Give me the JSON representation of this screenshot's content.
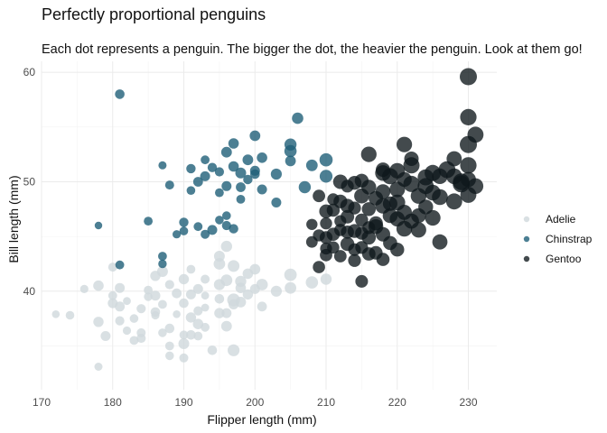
{
  "chart_data": {
    "type": "scatter",
    "title": "Perfectly proportional penguins",
    "subtitle": "Each dot represents a penguin. The bigger the dot, the heavier the penguin. Look at them go!",
    "xlabel": "Flipper length (mm)",
    "ylabel": "Bill length (mm)",
    "xlim": [
      170,
      234
    ],
    "ylim": [
      31,
      61
    ],
    "x_ticks": [
      "170",
      "180",
      "190",
      "200",
      "210",
      "220",
      "230"
    ],
    "y_ticks": [
      "40",
      "50",
      "60"
    ],
    "grid": true,
    "legend_position": "right",
    "size_encoding": "body mass",
    "series": [
      {
        "name": "Adelie",
        "color": "#cfd8dc",
        "opacity": 0.8,
        "points": [
          [
            172,
            37.9,
            3150
          ],
          [
            174,
            37.8,
            3400
          ],
          [
            176,
            40.2,
            3300
          ],
          [
            178,
            37.2,
            3900
          ],
          [
            178,
            40.5,
            3950
          ],
          [
            178,
            33.1,
            3250
          ],
          [
            179,
            35.9,
            3800
          ],
          [
            180,
            38.9,
            3800
          ],
          [
            180,
            42.2,
            3550
          ],
          [
            181,
            38.6,
            3800
          ],
          [
            181,
            40.3,
            3800
          ],
          [
            181,
            37.3,
            3600
          ],
          [
            182,
            39.1,
            3200
          ],
          [
            182,
            36.4,
            3300
          ],
          [
            183,
            37.5,
            3400
          ],
          [
            184,
            38.4,
            3600
          ],
          [
            184,
            35.7,
            3600
          ],
          [
            185,
            39.5,
            3400
          ],
          [
            185,
            40.1,
            3500
          ],
          [
            186,
            37.8,
            3300
          ],
          [
            186,
            38.1,
            3700
          ],
          [
            186,
            41.4,
            3900
          ],
          [
            187,
            36.2,
            3400
          ],
          [
            187,
            38.8,
            3450
          ],
          [
            188,
            35.0,
            3450
          ],
          [
            188,
            34.1,
            3400
          ],
          [
            188,
            40.6,
            3600
          ],
          [
            189,
            39.8,
            3750
          ],
          [
            189,
            37.9,
            3150
          ],
          [
            190,
            38.9,
            3700
          ],
          [
            190,
            35.2,
            4100
          ],
          [
            190,
            41.1,
            3900
          ],
          [
            190,
            36.0,
            3450
          ],
          [
            191,
            37.6,
            3900
          ],
          [
            191,
            39.7,
            3800
          ],
          [
            191,
            42.0,
            3500
          ],
          [
            192,
            38.2,
            3600
          ],
          [
            192,
            40.2,
            3800
          ],
          [
            192,
            37.0,
            4000
          ],
          [
            193,
            36.7,
            3450
          ],
          [
            193,
            39.6,
            3200
          ],
          [
            193,
            41.1,
            3550
          ],
          [
            194,
            34.6,
            3700
          ],
          [
            195,
            39.3,
            3700
          ],
          [
            195,
            38.0,
            3900
          ],
          [
            195,
            43.2,
            4100
          ],
          [
            195,
            40.6,
            4150
          ],
          [
            196,
            36.8,
            4050
          ],
          [
            196,
            41.0,
            4300
          ],
          [
            197,
            39.2,
            4700
          ],
          [
            197,
            42.3,
            4350
          ],
          [
            197,
            38.8,
            3850
          ],
          [
            198,
            40.9,
            4200
          ],
          [
            198,
            39.0,
            4050
          ],
          [
            199,
            39.7,
            3900
          ],
          [
            199,
            41.6,
            4000
          ],
          [
            200,
            40.2,
            3800
          ],
          [
            200,
            42.0,
            4050
          ],
          [
            201,
            40.6,
            4300
          ],
          [
            201,
            38.6,
            3750
          ],
          [
            203,
            40.0,
            4150
          ],
          [
            205,
            40.3,
            4300
          ],
          [
            205,
            41.5,
            4600
          ],
          [
            208,
            40.8,
            4550
          ],
          [
            210,
            41.1,
            4200
          ],
          [
            196,
            44.1,
            4200
          ],
          [
            197,
            34.6,
            4400
          ],
          [
            192,
            35.9,
            3500
          ],
          [
            190,
            33.9,
            3550
          ],
          [
            184,
            36.2,
            3550
          ],
          [
            186,
            39.6,
            3800
          ],
          [
            193,
            38.5,
            3200
          ],
          [
            191,
            36.0,
            3700
          ],
          [
            188,
            36.6,
            3700
          ],
          [
            195,
            42.5,
            4300
          ],
          [
            196,
            38.0,
            3800
          ],
          [
            198,
            40.3,
            3950
          ],
          [
            180,
            39.6,
            3500
          ],
          [
            183,
            35.5,
            3450
          ],
          [
            187,
            41.8,
            4100
          ]
        ]
      },
      {
        "name": "Chinstrap",
        "color": "#1f5f78",
        "opacity": 0.8,
        "points": [
          [
            178,
            46.0,
            3100
          ],
          [
            181,
            58.0,
            3700
          ],
          [
            181,
            42.4,
            3500
          ],
          [
            187,
            51.5,
            3250
          ],
          [
            187,
            42.5,
            3350
          ],
          [
            187,
            43.2,
            3450
          ],
          [
            190,
            46.3,
            3650
          ],
          [
            190,
            45.5,
            3400
          ],
          [
            191,
            49.2,
            3400
          ],
          [
            192,
            50.0,
            3750
          ],
          [
            193,
            52.0,
            3500
          ],
          [
            193,
            50.5,
            3800
          ],
          [
            193,
            45.2,
            3550
          ],
          [
            194,
            51.3,
            3650
          ],
          [
            194,
            45.6,
            3800
          ],
          [
            195,
            50.9,
            3600
          ],
          [
            195,
            49.0,
            3500
          ],
          [
            195,
            46.5,
            3400
          ],
          [
            196,
            52.7,
            4050
          ],
          [
            196,
            49.6,
            3800
          ],
          [
            196,
            46.0,
            3600
          ],
          [
            197,
            51.4,
            3950
          ],
          [
            197,
            53.5,
            4000
          ],
          [
            197,
            45.7,
            3650
          ],
          [
            198,
            50.8,
            4100
          ],
          [
            198,
            49.5,
            3750
          ],
          [
            199,
            52.0,
            4050
          ],
          [
            199,
            50.2,
            3650
          ],
          [
            200,
            54.2,
            4050
          ],
          [
            200,
            51.0,
            3800
          ],
          [
            201,
            49.3,
            3800
          ],
          [
            201,
            52.2,
            4000
          ],
          [
            203,
            50.7,
            4150
          ],
          [
            203,
            48.1,
            3800
          ],
          [
            205,
            53.4,
            4450
          ],
          [
            205,
            52.8,
            4550
          ],
          [
            205,
            51.9,
            4050
          ],
          [
            206,
            55.8,
            4250
          ],
          [
            208,
            51.5,
            4300
          ],
          [
            210,
            52.0,
            4800
          ],
          [
            210,
            50.5,
            4700
          ],
          [
            207,
            49.5,
            4450
          ],
          [
            198,
            48.4,
            3500
          ],
          [
            200,
            50.7,
            3700
          ],
          [
            192,
            45.9,
            3500
          ],
          [
            189,
            45.2,
            3300
          ],
          [
            196,
            46.9,
            3400
          ],
          [
            188,
            49.7,
            3550
          ],
          [
            185,
            46.4,
            3500
          ],
          [
            191,
            51.2,
            3650
          ]
        ]
      },
      {
        "name": "Gentoo",
        "color": "#0e171b",
        "opacity": 0.78,
        "points": [
          [
            208,
            46.1,
            4200
          ],
          [
            208,
            44.5,
            4300
          ],
          [
            209,
            45.1,
            4450
          ],
          [
            209,
            48.7,
            4600
          ],
          [
            210,
            46.2,
            4450
          ],
          [
            210,
            43.3,
            4600
          ],
          [
            210,
            47.3,
            4950
          ],
          [
            211,
            44.0,
            4500
          ],
          [
            211,
            48.4,
            4400
          ],
          [
            211,
            45.2,
            4800
          ],
          [
            212,
            43.2,
            4600
          ],
          [
            212,
            46.4,
            4400
          ],
          [
            212,
            48.2,
            4950
          ],
          [
            213,
            49.6,
            4700
          ],
          [
            213,
            44.3,
            5050
          ],
          [
            213,
            46.8,
            4900
          ],
          [
            214,
            45.5,
            5000
          ],
          [
            214,
            47.6,
            4700
          ],
          [
            214,
            42.8,
            4700
          ],
          [
            214,
            49.9,
            5050
          ],
          [
            215,
            40.9,
            4650
          ],
          [
            215,
            46.5,
            4750
          ],
          [
            215,
            48.7,
            5350
          ],
          [
            215,
            45.3,
            4800
          ],
          [
            215,
            50.1,
            5000
          ],
          [
            216,
            44.9,
            5100
          ],
          [
            216,
            47.5,
            5000
          ],
          [
            216,
            49.5,
            5300
          ],
          [
            216,
            45.8,
            4700
          ],
          [
            217,
            43.5,
            4900
          ],
          [
            217,
            46.2,
            5100
          ],
          [
            217,
            48.5,
            5200
          ],
          [
            218,
            49.1,
            5300
          ],
          [
            218,
            45.2,
            5200
          ],
          [
            218,
            47.8,
            5500
          ],
          [
            218,
            42.9,
            4800
          ],
          [
            219,
            46.9,
            5300
          ],
          [
            219,
            50.5,
            5700
          ],
          [
            219,
            44.4,
            5100
          ],
          [
            220,
            49.3,
            5550
          ],
          [
            220,
            46.6,
            5400
          ],
          [
            220,
            48.1,
            5650
          ],
          [
            220,
            43.8,
            5000
          ],
          [
            221,
            47.2,
            5400
          ],
          [
            221,
            50.2,
            5300
          ],
          [
            221,
            45.7,
            5600
          ],
          [
            222,
            49.8,
            5750
          ],
          [
            222,
            46.4,
            5400
          ],
          [
            222,
            52.1,
            5200
          ],
          [
            223,
            48.7,
            5600
          ],
          [
            223,
            45.6,
            5450
          ],
          [
            224,
            49.6,
            5700
          ],
          [
            224,
            50.4,
            5700
          ],
          [
            224,
            47.7,
            5300
          ],
          [
            225,
            50.8,
            5750
          ],
          [
            225,
            49.0,
            5600
          ],
          [
            225,
            46.7,
            5500
          ],
          [
            226,
            48.6,
            5650
          ],
          [
            226,
            50.5,
            5550
          ],
          [
            226,
            44.5,
            5400
          ],
          [
            227,
            51.1,
            5900
          ],
          [
            228,
            50.5,
            5600
          ],
          [
            228,
            48.2,
            5700
          ],
          [
            228,
            52.1,
            5400
          ],
          [
            229,
            49.8,
            5950
          ],
          [
            229,
            50.0,
            5850
          ],
          [
            230,
            59.6,
            6050
          ],
          [
            230,
            55.9,
            5800
          ],
          [
            230,
            51.5,
            5800
          ],
          [
            230,
            50.2,
            5400
          ],
          [
            230,
            48.8,
            5700
          ],
          [
            230,
            53.4,
            6000
          ],
          [
            231,
            54.3,
            5700
          ],
          [
            231,
            49.6,
            5600
          ],
          [
            221,
            53.4,
            5500
          ],
          [
            218,
            51.1,
            5200
          ],
          [
            216,
            52.5,
            5550
          ],
          [
            222,
            51.5,
            5750
          ],
          [
            213,
            45.4,
            4800
          ],
          [
            212,
            50.0,
            5200
          ],
          [
            209,
            42.2,
            4500
          ],
          [
            210,
            44.9,
            4700
          ],
          [
            211,
            47.4,
            4750
          ],
          [
            214,
            43.8,
            4650
          ],
          [
            217,
            45.9,
            5300
          ],
          [
            219,
            48.0,
            5200
          ],
          [
            215,
            44.0,
            4700
          ],
          [
            212,
            45.6,
            4550
          ],
          [
            223,
            46.9,
            5300
          ],
          [
            216,
            43.4,
            4850
          ],
          [
            220,
            51.0,
            5500
          ],
          [
            210,
            43.9,
            4400
          ],
          [
            213,
            47.8,
            5100
          ],
          [
            218,
            50.8,
            5600
          ]
        ]
      }
    ]
  }
}
